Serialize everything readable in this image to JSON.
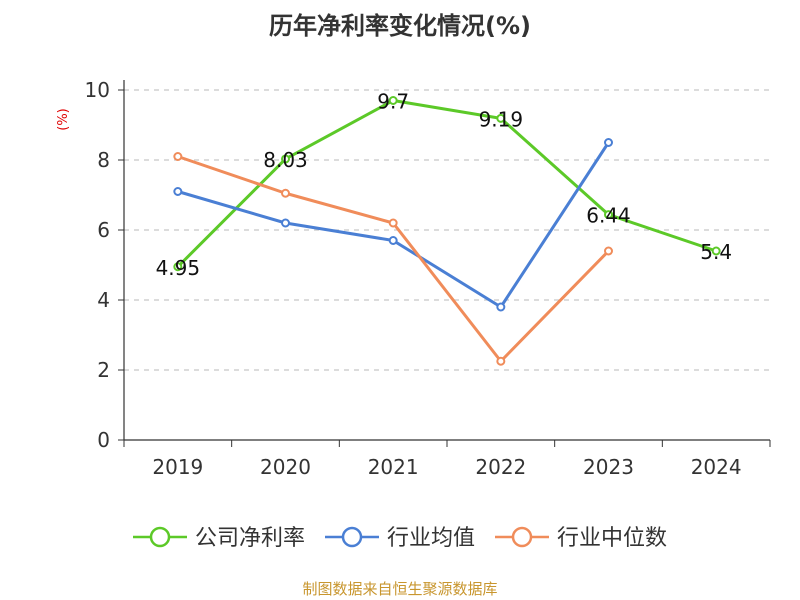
{
  "chart_data": {
    "type": "line",
    "title": "历年净利率变化情况(%)",
    "unit_label": "(%)",
    "categories": [
      "2019",
      "2020",
      "2021",
      "2022",
      "2023",
      "2024"
    ],
    "ylim": [
      0,
      10
    ],
    "yticks": [
      0,
      2,
      4,
      6,
      8,
      10
    ],
    "grid": true,
    "legend_position": "bottom",
    "series": [
      {
        "name": "公司净利率",
        "color": "#5cc928",
        "values": [
          4.95,
          8.03,
          9.7,
          9.19,
          6.44,
          5.4
        ],
        "data_labels": [
          "4.95",
          "8.03",
          "9.7",
          "9.19",
          "6.44",
          "5.4"
        ]
      },
      {
        "name": "行业均值",
        "color": "#4a7fd4",
        "values": [
          7.1,
          6.2,
          5.7,
          3.8,
          8.5,
          null
        ]
      },
      {
        "name": "行业中位数",
        "color": "#f08c5a",
        "values": [
          8.1,
          7.05,
          6.2,
          2.25,
          5.4,
          null
        ]
      }
    ]
  },
  "footer": "制图数据来自恒生聚源数据库"
}
